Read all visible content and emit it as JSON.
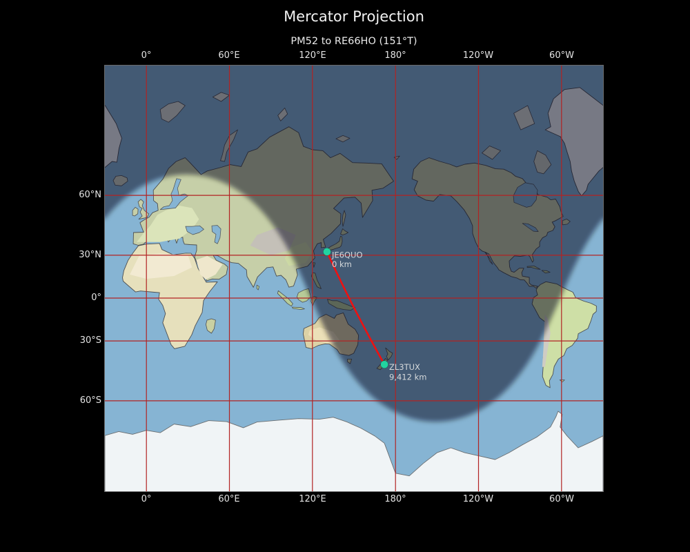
{
  "title": "Mercator Projection",
  "subtitle": "PM52 to RE66HO (151°T)",
  "axes": {
    "top": [
      "0°",
      "60°E",
      "120°E",
      "180°",
      "120°W",
      "60°W"
    ],
    "bottom": [
      "0°",
      "60°E",
      "120°E",
      "180°",
      "120°W",
      "60°W"
    ],
    "left": [
      "60°N",
      "30°N",
      "0°",
      "30°S",
      "60°S"
    ]
  },
  "route": {
    "origin_callsign": "JE6QUO",
    "origin_distance": "0 km",
    "dest_callsign": "ZL3TUX",
    "dest_distance": "9,412 km"
  },
  "colors": {
    "background": "#000000",
    "grid": "#b22222",
    "route": "#ee1111",
    "marker": "#22d3a0",
    "ocean": "#86b4d3",
    "night": "rgba(8,12,22,0.5)",
    "label": "#d6dadc"
  }
}
